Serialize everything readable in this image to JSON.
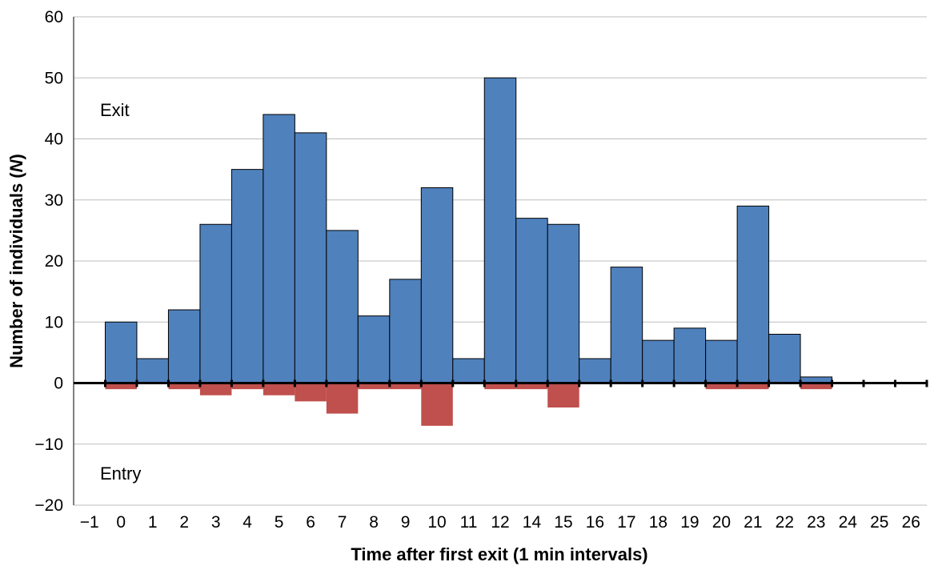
{
  "chart_data": {
    "type": "bar",
    "xlabel": "Time after first exit (1 min intervals)",
    "ylabel": "Number of individuals (",
    "ylabel_italic": "N",
    "ylabel_end": ")",
    "ylim": [
      -20,
      60
    ],
    "yticks": [
      {
        "value": 60,
        "label": "60"
      },
      {
        "value": 50,
        "label": "50"
      },
      {
        "value": 40,
        "label": "40"
      },
      {
        "value": 30,
        "label": "30"
      },
      {
        "value": 20,
        "label": "20"
      },
      {
        "value": 10,
        "label": "10"
      },
      {
        "value": 0,
        "label": "0"
      },
      {
        "value": -10,
        "label": "−10"
      },
      {
        "value": -20,
        "label": "−20"
      }
    ],
    "categories": [
      "−1",
      "0",
      "1",
      "2",
      "3",
      "4",
      "5",
      "6",
      "7",
      "8",
      "9",
      "10",
      "11",
      "12",
      "14",
      "15",
      "16",
      "17",
      "18",
      "19",
      "20",
      "21",
      "22",
      "23",
      "24",
      "25",
      "26"
    ],
    "series": [
      {
        "name": "Exit",
        "color": "#4f81bd",
        "values": [
          0,
          10,
          4,
          12,
          26,
          35,
          44,
          41,
          25,
          11,
          17,
          32,
          4,
          50,
          27,
          26,
          4,
          19,
          7,
          9,
          7,
          29,
          8,
          1,
          0,
          0,
          0
        ]
      },
      {
        "name": "Entry",
        "color": "#c0504d",
        "values": [
          0,
          -1,
          0,
          -1,
          -2,
          -1,
          -2,
          -3,
          -5,
          -1,
          -1,
          -7,
          0,
          -1,
          -1,
          -4,
          0,
          0,
          0,
          0,
          -1,
          -1,
          0,
          -1,
          0,
          0,
          0
        ]
      }
    ],
    "annotations": {
      "exit": "Exit",
      "entry": "Entry"
    },
    "grid": true,
    "legend": "none"
  }
}
